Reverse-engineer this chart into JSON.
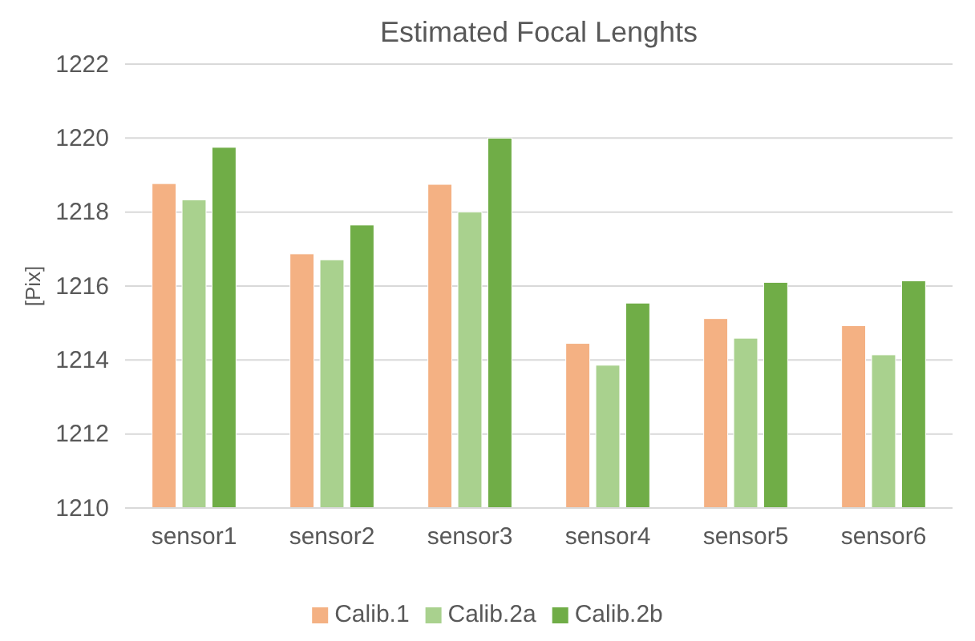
{
  "chart_data": {
    "type": "bar",
    "title": "Estimated Focal Lenghts",
    "ylabel": "[Pix]",
    "categories": [
      "sensor1",
      "sensor2",
      "sensor3",
      "sensor4",
      "sensor5",
      "sensor6"
    ],
    "series": [
      {
        "name": "Calib.1",
        "color": "#f4b183",
        "values": [
          1218.77,
          1216.87,
          1218.75,
          1214.45,
          1215.12,
          1214.93
        ]
      },
      {
        "name": "Calib.2a",
        "color": "#a9d18e",
        "values": [
          1218.33,
          1216.71,
          1218.0,
          1213.86,
          1214.59,
          1214.14
        ]
      },
      {
        "name": "Calib.2b",
        "color": "#70ad47",
        "values": [
          1219.75,
          1217.65,
          1220.0,
          1215.54,
          1216.1,
          1216.14
        ]
      }
    ],
    "ylim": [
      1210,
      1222
    ],
    "yticks": [
      1210,
      1212,
      1214,
      1216,
      1218,
      1220,
      1222
    ],
    "grid": "y",
    "legend": "bottom"
  }
}
